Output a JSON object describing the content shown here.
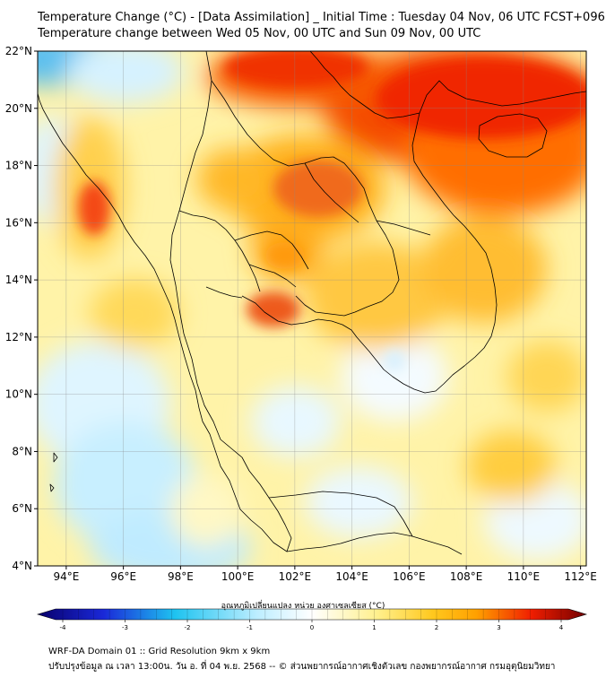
{
  "title": {
    "line1": "Temperature Change (°C) - [Data Assimilation] _ Initial Time : Tuesday 04 Nov, 06 UTC FCST+096",
    "line2": "Temperature change between Wed 05 Nov, 00 UTC and Sun 09 Nov, 00 UTC"
  },
  "map": {
    "lat_ticks": [
      "22°N",
      "20°N",
      "18°N",
      "16°N",
      "14°N",
      "12°N",
      "10°N",
      "8°N",
      "6°N",
      "4°N"
    ],
    "lon_ticks": [
      "94°E",
      "96°E",
      "98°E",
      "100°E",
      "102°E",
      "104°E",
      "106°E",
      "108°E",
      "110°E",
      "112°E"
    ],
    "lat_range": [
      4,
      22
    ],
    "lon_range": [
      93,
      112.2
    ]
  },
  "colorbar": {
    "label": "อุณหภูมิเปลี่ยนแปลง หน่วย องศาเซลเซียส (°C)",
    "ticks": [
      "-4",
      "-3",
      "-2",
      "-1",
      "0",
      "1",
      "2",
      "3",
      "4"
    ],
    "range": [
      -4,
      4
    ],
    "colors": {
      "min": "#08006b",
      "blue": "#1ec3f0",
      "light": "#eaf8ff",
      "white": "#ffffff",
      "yellow": "#fff08c",
      "orange": "#ffa000",
      "red": "#f01e00",
      "max": "#730000"
    }
  },
  "footer": {
    "line1": "WRF-DA Domain 01 :: Grid Resolution 9km x 9km",
    "line2": "ปรับปรุงข้อมูล ณ เวลา 13:00น. วัน อ. ที่ 04 พ.ย. 2568 -- © ส่วนพยากรณ์อากาศเชิงตัวเลข กองพยากรณ์อากาศ กรมอุตุนิยมวิทยา"
  }
}
